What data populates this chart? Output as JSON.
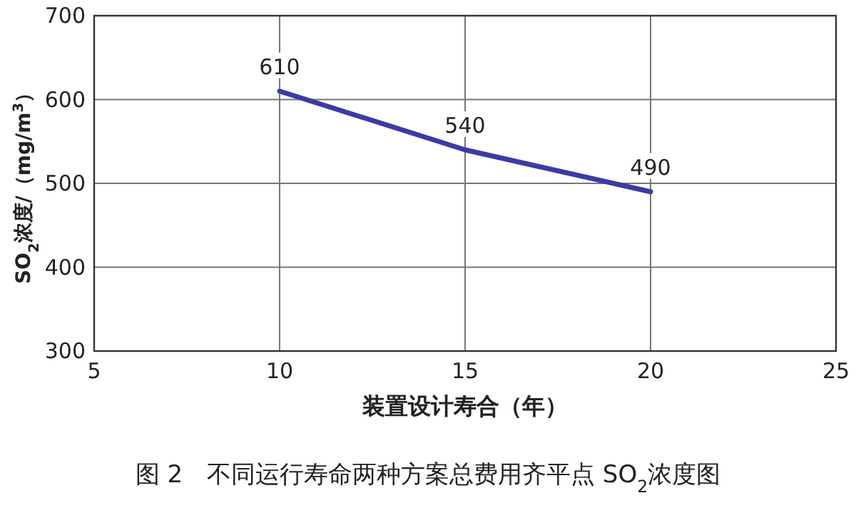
{
  "chart_data": {
    "type": "line",
    "title": "图 2　不同运行寿命两种方案总费用齐平点 SO$_{2}$浓度图",
    "xlabel": "装置设计寿合（年）",
    "ylabel": "SO$_{2}$浓度/（mg/m$^{3}$）",
    "x": [
      10,
      15,
      20
    ],
    "series": [
      {
        "color": "#3b3ba6",
        "values": [
          610,
          540,
          490
        ]
      }
    ],
    "data_labels": true,
    "grid": true,
    "marker": "none",
    "line_style": "solid",
    "xlim": [
      5,
      25
    ],
    "ylim": [
      300,
      700
    ],
    "xticks": [
      5,
      10,
      15,
      20,
      25
    ],
    "yticks": [
      300,
      400,
      500,
      600,
      700
    ]
  }
}
